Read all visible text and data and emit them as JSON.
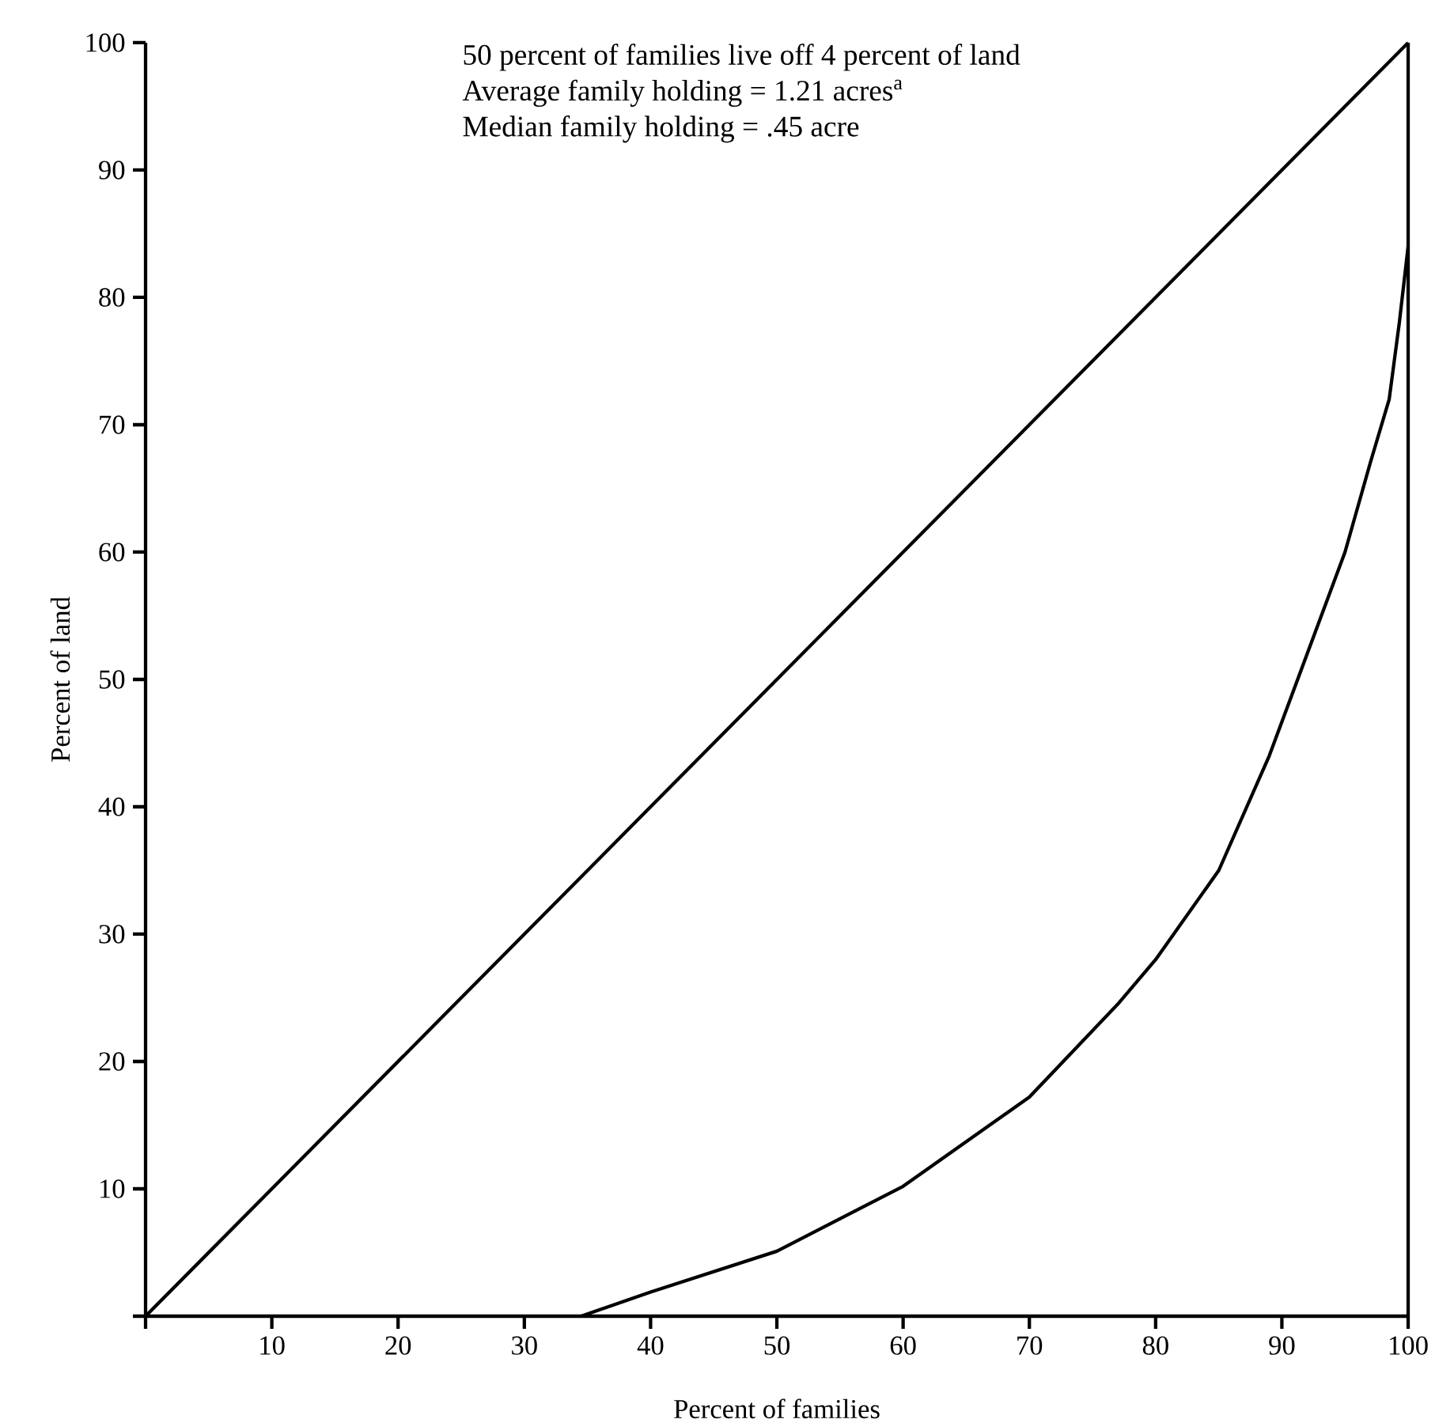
{
  "chart_data": {
    "type": "line",
    "xlabel": "Percent of families",
    "ylabel": "Percent of land",
    "annotations": [
      "50 percent of families live off 4 percent of land",
      "Average family holding = 1.21 acres$^{a}$",
      "Median family holding = .45 acre"
    ],
    "xlim": [
      0,
      100
    ],
    "ylim": [
      0,
      100
    ],
    "xticks": [
      {
        "value": 0,
        "label": null
      },
      10,
      20,
      30,
      40,
      50,
      60,
      70,
      80,
      90,
      100
    ],
    "yticks": [
      {
        "value": 0,
        "label": null
      },
      10,
      20,
      30,
      40,
      50,
      60,
      70,
      80,
      90,
      100
    ],
    "ref_lines": [
      {
        "axis": "x",
        "value": 100,
        "color": "#000000"
      }
    ],
    "marker": "none",
    "line_style": "solid",
    "legend": false,
    "grid": false,
    "series": [
      {
        "color": "#000000",
        "x": [
          0,
          100
        ],
        "values": [
          0,
          100
        ]
      },
      {
        "color": "#000000",
        "x": [
          34.5,
          40,
          50,
          60,
          70,
          77,
          80,
          85,
          89,
          92,
          95,
          97,
          98.5,
          99.3,
          100
        ],
        "values": [
          0,
          1.9,
          5.1,
          10.2,
          17.2,
          24.5,
          28,
          35,
          44,
          52,
          60,
          67,
          72,
          78,
          84
        ]
      }
    ]
  }
}
